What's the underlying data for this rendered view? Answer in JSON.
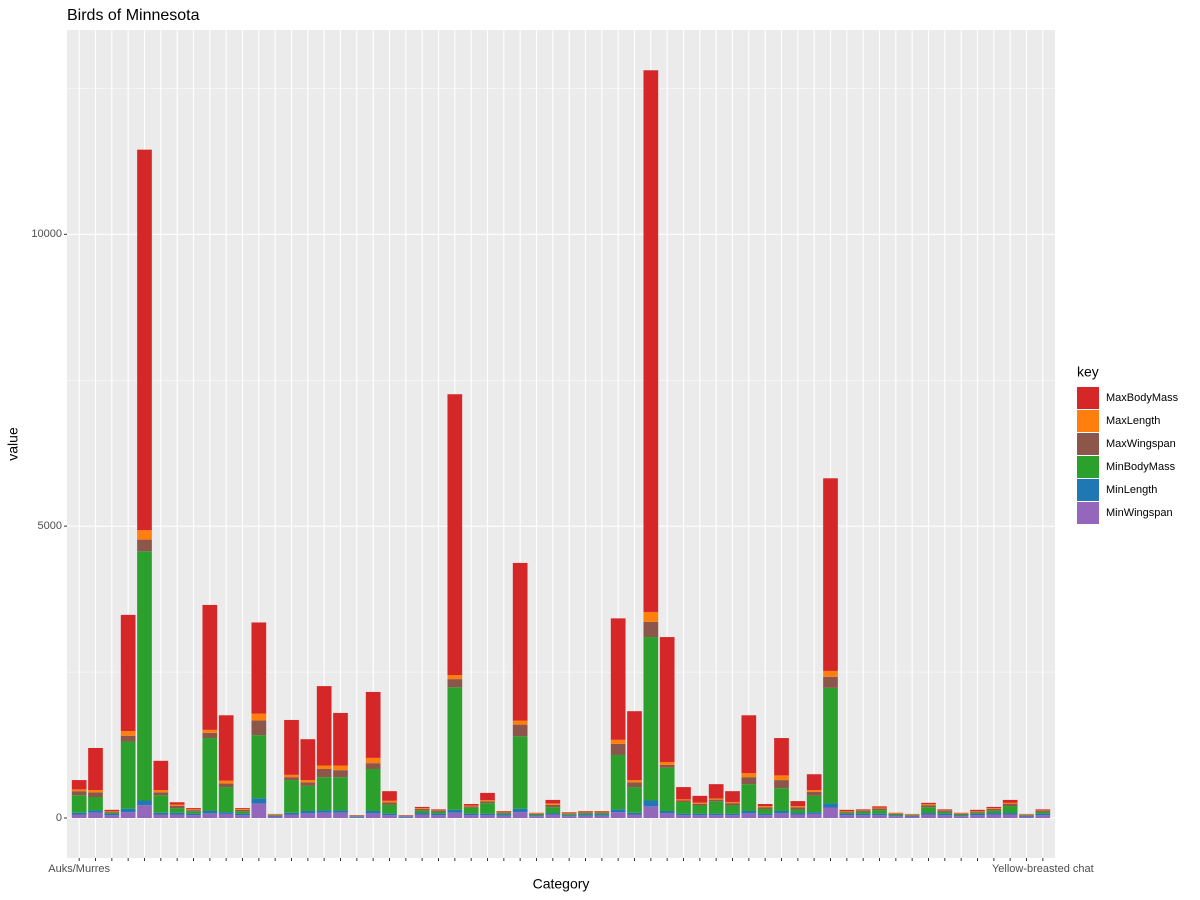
{
  "chart_data": {
    "type": "stacked_bar",
    "title": "Birds of Minnesota",
    "x_label": "Category",
    "y_label": "value",
    "legend_title": "key",
    "legend_position": "right",
    "grid": true,
    "categories": [
      "Auks/Murres",
      null,
      null,
      null,
      null,
      null,
      null,
      null,
      null,
      null,
      null,
      null,
      null,
      null,
      null,
      null,
      null,
      null,
      null,
      null,
      null,
      null,
      null,
      null,
      null,
      null,
      null,
      null,
      null,
      null,
      null,
      null,
      null,
      null,
      null,
      null,
      null,
      null,
      null,
      null,
      null,
      null,
      null,
      null,
      null,
      null,
      null,
      null,
      null,
      null,
      null,
      null,
      null,
      null,
      null,
      null,
      null,
      null,
      null,
      "Yellow-breasted chat"
    ],
    "ylim": [
      -685,
      13500
    ],
    "yticks": [
      0,
      5000,
      10000
    ],
    "y_minor_grid": [
      2500,
      7500,
      12500
    ],
    "series": [
      {
        "name": "MinWingspan",
        "color": "#9467bd",
        "values": [
          60,
          90,
          50,
          100,
          220,
          60,
          60,
          50,
          80,
          70,
          50,
          250,
          25,
          60,
          80,
          90,
          90,
          20,
          80,
          50,
          20,
          60,
          50,
          90,
          50,
          50,
          40,
          100,
          30,
          60,
          30,
          40,
          40,
          100,
          60,
          200,
          80,
          50,
          50,
          50,
          50,
          80,
          50,
          80,
          60,
          70,
          180,
          50,
          50,
          50,
          30,
          25,
          60,
          50,
          30,
          50,
          60,
          60,
          25,
          50
        ]
      },
      {
        "name": "MinLength",
        "color": "#1f77b4",
        "values": [
          30,
          40,
          20,
          60,
          80,
          30,
          30,
          25,
          40,
          30,
          25,
          90,
          10,
          30,
          40,
          40,
          40,
          10,
          40,
          25,
          10,
          25,
          25,
          50,
          25,
          25,
          20,
          60,
          15,
          25,
          15,
          20,
          20,
          50,
          30,
          100,
          40,
          25,
          25,
          25,
          25,
          40,
          25,
          40,
          25,
          30,
          70,
          20,
          25,
          25,
          15,
          10,
          25,
          25,
          15,
          20,
          25,
          25,
          10,
          25
        ]
      },
      {
        "name": "MinBodyMass",
        "color": "#2ca02c",
        "values": [
          300,
          230,
          20,
          1150,
          4270,
          300,
          80,
          40,
          1250,
          430,
          40,
          1080,
          12,
          560,
          430,
          570,
          570,
          5,
          720,
          150,
          5,
          40,
          30,
          2100,
          100,
          180,
          20,
          1240,
          15,
          100,
          20,
          20,
          20,
          930,
          440,
          2800,
          740,
          200,
          140,
          210,
          140,
          460,
          80,
          390,
          60,
          280,
          1980,
          20,
          30,
          60,
          15,
          12,
          100,
          30,
          15,
          20,
          40,
          120,
          12,
          30
        ]
      },
      {
        "name": "MaxWingspan",
        "color": "#8c564b",
        "values": [
          70,
          80,
          20,
          100,
          200,
          50,
          40,
          20,
          90,
          60,
          25,
          250,
          10,
          50,
          60,
          140,
          120,
          8,
          100,
          40,
          8,
          30,
          25,
          140,
          25,
          30,
          20,
          200,
          15,
          40,
          15,
          20,
          20,
          190,
          80,
          260,
          50,
          25,
          30,
          30,
          40,
          120,
          30,
          140,
          40,
          70,
          190,
          20,
          25,
          30,
          15,
          10,
          35,
          25,
          15,
          20,
          30,
          35,
          10,
          25
        ]
      },
      {
        "name": "MaxLength",
        "color": "#ff7f0e",
        "values": [
          30,
          40,
          10,
          80,
          160,
          40,
          20,
          15,
          50,
          50,
          15,
          120,
          8,
          40,
          40,
          60,
          80,
          5,
          90,
          30,
          5,
          15,
          10,
          70,
          15,
          20,
          10,
          70,
          10,
          25,
          10,
          10,
          10,
          70,
          40,
          170,
          50,
          20,
          20,
          20,
          20,
          70,
          20,
          80,
          20,
          30,
          100,
          10,
          10,
          15,
          10,
          8,
          20,
          10,
          10,
          10,
          15,
          20,
          8,
          10
        ]
      },
      {
        "name": "MaxBodyMass",
        "color": "#d62728",
        "values": [
          160,
          720,
          20,
          1990,
          6520,
          500,
          40,
          20,
          2140,
          1120,
          15,
          1560,
          5,
          940,
          700,
          1360,
          900,
          2,
          1130,
          165,
          2,
          20,
          10,
          4810,
          25,
          125,
          10,
          2700,
          5,
          60,
          10,
          10,
          10,
          2080,
          1180,
          9280,
          2140,
          210,
          115,
          245,
          185,
          990,
          35,
          640,
          85,
          270,
          3300,
          20,
          10,
          20,
          5,
          5,
          20,
          10,
          5,
          20,
          20,
          50,
          5,
          10
        ]
      }
    ]
  }
}
